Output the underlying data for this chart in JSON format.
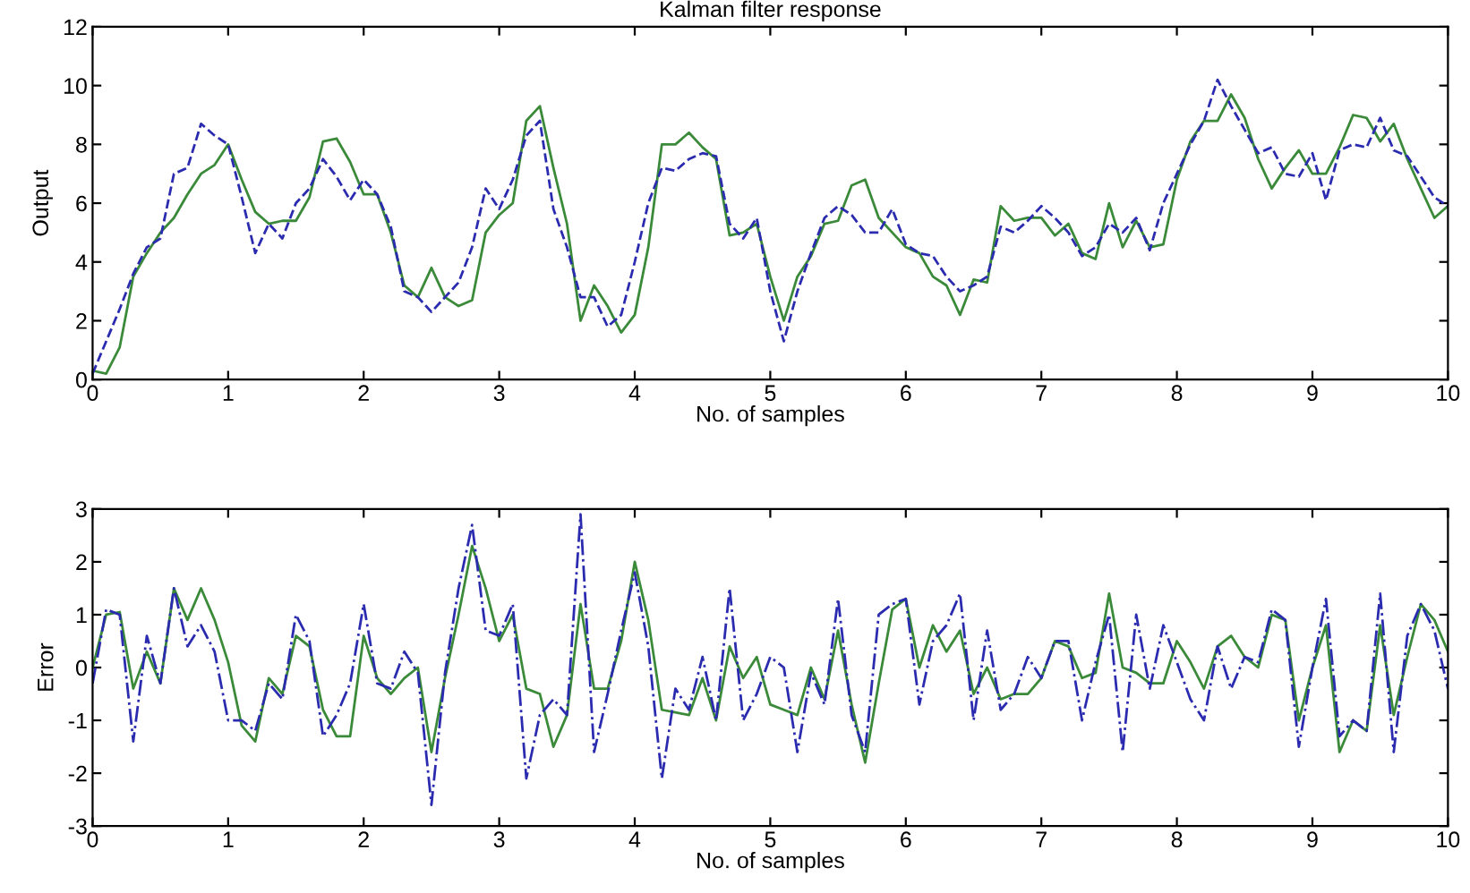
{
  "chart_data": [
    {
      "type": "line",
      "title": "Kalman filter response",
      "xlabel": "No. of samples",
      "ylabel": "Output",
      "x": [
        0,
        0.1,
        0.2,
        0.3,
        0.4,
        0.5,
        0.6,
        0.7,
        0.8,
        0.9,
        1,
        1.1,
        1.2,
        1.3,
        1.4,
        1.5,
        1.6,
        1.7,
        1.8,
        1.9,
        2,
        2.1,
        2.2,
        2.3,
        2.4,
        2.5,
        2.6,
        2.7,
        2.8,
        2.9,
        3,
        3.1,
        3.2,
        3.3,
        3.4,
        3.5,
        3.6,
        3.7,
        3.8,
        3.9,
        4,
        4.1,
        4.2,
        4.3,
        4.4,
        4.5,
        4.6,
        4.7,
        4.8,
        4.9,
        5,
        5.1,
        5.2,
        5.3,
        5.4,
        5.5,
        5.6,
        5.7,
        5.8,
        5.9,
        6,
        6.1,
        6.2,
        6.3,
        6.4,
        6.5,
        6.6,
        6.7,
        6.8,
        6.9,
        7,
        7.1,
        7.2,
        7.3,
        7.4,
        7.5,
        7.6,
        7.7,
        7.8,
        7.9,
        8,
        8.1,
        8.2,
        8.3,
        8.4,
        8.5,
        8.6,
        8.7,
        8.8,
        8.9,
        9,
        9.1,
        9.2,
        9.3,
        9.4,
        9.5,
        9.6,
        9.7,
        9.8,
        9.9,
        10
      ],
      "series": [
        {
          "color": "#3a8a3a",
          "line_style": "solid",
          "values": [
            0.3,
            0.2,
            1.1,
            3.5,
            4.3,
            5.0,
            5.5,
            6.3,
            7.0,
            7.3,
            8.0,
            6.8,
            5.7,
            5.3,
            5.4,
            5.4,
            6.2,
            8.1,
            8.2,
            7.4,
            6.3,
            6.3,
            5.0,
            3.2,
            2.8,
            3.8,
            2.8,
            2.5,
            2.7,
            5.0,
            5.6,
            6.0,
            8.8,
            9.3,
            7.2,
            5.3,
            2.0,
            3.2,
            2.5,
            1.6,
            2.2,
            4.5,
            8.0,
            8.0,
            8.4,
            7.9,
            7.5,
            4.9,
            5.0,
            5.3,
            3.5,
            2.0,
            3.5,
            4.2,
            5.3,
            5.4,
            6.6,
            6.8,
            5.5,
            5.0,
            4.5,
            4.3,
            3.5,
            3.2,
            2.2,
            3.4,
            3.3,
            5.9,
            5.4,
            5.5,
            5.5,
            4.9,
            5.3,
            4.3,
            4.1,
            6.0,
            4.5,
            5.4,
            4.5,
            4.6,
            6.8,
            8.1,
            8.8,
            8.8,
            9.7,
            8.9,
            7.5,
            6.5,
            7.2,
            7.8,
            7.0,
            7.0,
            7.9,
            9.0,
            8.9,
            8.1,
            8.7,
            7.5,
            6.5,
            5.5,
            5.9
          ]
        },
        {
          "color": "#2b2bb0",
          "line_style": "dashed",
          "values": [
            0.2,
            1.3,
            2.4,
            3.6,
            4.5,
            4.8,
            7.0,
            7.2,
            8.7,
            8.3,
            8.0,
            6.2,
            4.3,
            5.3,
            4.8,
            6.0,
            6.5,
            7.5,
            6.9,
            6.1,
            6.8,
            6.3,
            5.2,
            3.0,
            2.8,
            2.3,
            2.8,
            3.3,
            4.5,
            6.5,
            5.8,
            6.8,
            8.3,
            8.8,
            5.8,
            4.5,
            2.8,
            2.8,
            1.8,
            2.2,
            4.0,
            6.0,
            7.2,
            7.1,
            7.5,
            7.7,
            7.6,
            5.3,
            4.8,
            5.5,
            3.0,
            1.3,
            3.0,
            4.3,
            5.5,
            5.9,
            5.6,
            5.0,
            5.0,
            5.8,
            4.6,
            4.3,
            4.2,
            3.5,
            3.0,
            3.2,
            3.5,
            5.2,
            5.0,
            5.4,
            5.9,
            5.5,
            5.0,
            4.2,
            4.5,
            5.3,
            5.0,
            5.5,
            4.4,
            6.0,
            7.0,
            8.0,
            8.8,
            10.2,
            9.3,
            8.5,
            7.7,
            7.9,
            7.0,
            6.9,
            7.7,
            6.1,
            7.8,
            8.0,
            7.9,
            8.9,
            7.8,
            7.6,
            6.9,
            6.2,
            5.9
          ]
        }
      ],
      "xlim": [
        0,
        10
      ],
      "xticks": [
        0,
        1,
        2,
        3,
        4,
        5,
        6,
        7,
        8,
        9,
        10
      ],
      "ylim": [
        0,
        12
      ],
      "yticks": [
        0,
        2,
        4,
        6,
        8,
        10,
        12
      ],
      "grid": false,
      "legend": false,
      "marker": "none"
    },
    {
      "type": "line",
      "xlabel": "No. of samples",
      "ylabel": "Error",
      "x": [
        0,
        0.1,
        0.2,
        0.3,
        0.4,
        0.5,
        0.6,
        0.7,
        0.8,
        0.9,
        1,
        1.1,
        1.2,
        1.3,
        1.4,
        1.5,
        1.6,
        1.7,
        1.8,
        1.9,
        2,
        2.1,
        2.2,
        2.3,
        2.4,
        2.5,
        2.6,
        2.7,
        2.8,
        2.9,
        3,
        3.1,
        3.2,
        3.3,
        3.4,
        3.5,
        3.6,
        3.7,
        3.8,
        3.9,
        4,
        4.1,
        4.2,
        4.3,
        4.4,
        4.5,
        4.6,
        4.7,
        4.8,
        4.9,
        5,
        5.1,
        5.2,
        5.3,
        5.4,
        5.5,
        5.6,
        5.7,
        5.8,
        5.9,
        6,
        6.1,
        6.2,
        6.3,
        6.4,
        6.5,
        6.6,
        6.7,
        6.8,
        6.9,
        7,
        7.1,
        7.2,
        7.3,
        7.4,
        7.5,
        7.6,
        7.7,
        7.8,
        7.9,
        8,
        8.1,
        8.2,
        8.3,
        8.4,
        8.5,
        8.6,
        8.7,
        8.8,
        8.9,
        9,
        9.1,
        9.2,
        9.3,
        9.4,
        9.5,
        9.6,
        9.7,
        9.8,
        9.9,
        10
      ],
      "series": [
        {
          "color": "#3a8a3a",
          "line_style": "solid",
          "values": [
            0.0,
            1.0,
            1.05,
            -0.4,
            0.3,
            -0.3,
            1.5,
            0.9,
            1.5,
            0.9,
            0.1,
            -1.1,
            -1.4,
            -0.2,
            -0.5,
            0.6,
            0.4,
            -0.8,
            -1.3,
            -1.3,
            0.6,
            -0.2,
            -0.5,
            -0.2,
            0.0,
            -1.6,
            -0.2,
            1.0,
            2.3,
            1.5,
            0.5,
            1.0,
            -0.4,
            -0.5,
            -1.5,
            -0.9,
            1.2,
            -0.4,
            -0.4,
            0.5,
            2.0,
            0.9,
            -0.8,
            -0.85,
            -0.9,
            -0.2,
            -1.0,
            0.4,
            -0.2,
            0.2,
            -0.7,
            -0.8,
            -0.9,
            0.0,
            -0.6,
            0.7,
            -0.7,
            -1.8,
            -0.3,
            1.1,
            1.3,
            0.0,
            0.8,
            0.3,
            0.7,
            -0.5,
            0.0,
            -0.6,
            -0.5,
            -0.5,
            -0.2,
            0.5,
            0.4,
            -0.2,
            -0.1,
            1.4,
            0.0,
            -0.1,
            -0.3,
            -0.3,
            0.5,
            0.1,
            -0.4,
            0.4,
            0.6,
            0.2,
            0.0,
            1.0,
            0.9,
            -1.0,
            0.0,
            0.8,
            -1.6,
            -1.0,
            -1.2,
            0.8,
            -0.9,
            0.2,
            1.2,
            0.9,
            0.3
          ]
        },
        {
          "color": "#2b2bb0",
          "line_style": "dashdot",
          "values": [
            -0.3,
            1.1,
            1.0,
            -1.4,
            0.6,
            -0.3,
            1.5,
            0.4,
            0.8,
            0.3,
            -1.0,
            -1.0,
            -1.2,
            -0.3,
            -0.6,
            1.0,
            0.5,
            -1.3,
            -0.9,
            -0.3,
            1.2,
            -0.3,
            -0.4,
            0.3,
            -0.1,
            -2.6,
            -0.1,
            1.5,
            2.7,
            0.7,
            0.6,
            1.2,
            -2.1,
            -0.9,
            -0.6,
            -0.9,
            2.9,
            -1.6,
            -0.5,
            0.7,
            1.8,
            0.4,
            -2.1,
            -0.4,
            -0.8,
            0.2,
            -1.0,
            1.5,
            -1.0,
            -0.5,
            0.2,
            0.0,
            -1.6,
            -0.1,
            -0.7,
            1.3,
            -0.9,
            -1.6,
            1.0,
            1.2,
            1.3,
            -0.7,
            0.5,
            0.8,
            1.4,
            -1.0,
            0.7,
            -0.8,
            -0.5,
            0.2,
            -0.2,
            0.5,
            0.5,
            -1.0,
            0.1,
            1.0,
            -1.6,
            1.0,
            -0.4,
            0.8,
            0.1,
            -0.6,
            -1.0,
            0.4,
            -0.4,
            0.2,
            0.1,
            1.1,
            0.9,
            -1.5,
            0.0,
            1.3,
            -1.3,
            -1.0,
            -1.2,
            1.4,
            -1.6,
            0.6,
            1.2,
            0.7,
            -0.4
          ]
        }
      ],
      "xlim": [
        0,
        10
      ],
      "xticks": [
        0,
        1,
        2,
        3,
        4,
        5,
        6,
        7,
        8,
        9,
        10
      ],
      "ylim": [
        -3,
        3
      ],
      "yticks": [
        -3,
        -2,
        -1,
        0,
        1,
        2,
        3
      ],
      "grid": false,
      "legend": false,
      "marker": "none"
    }
  ]
}
